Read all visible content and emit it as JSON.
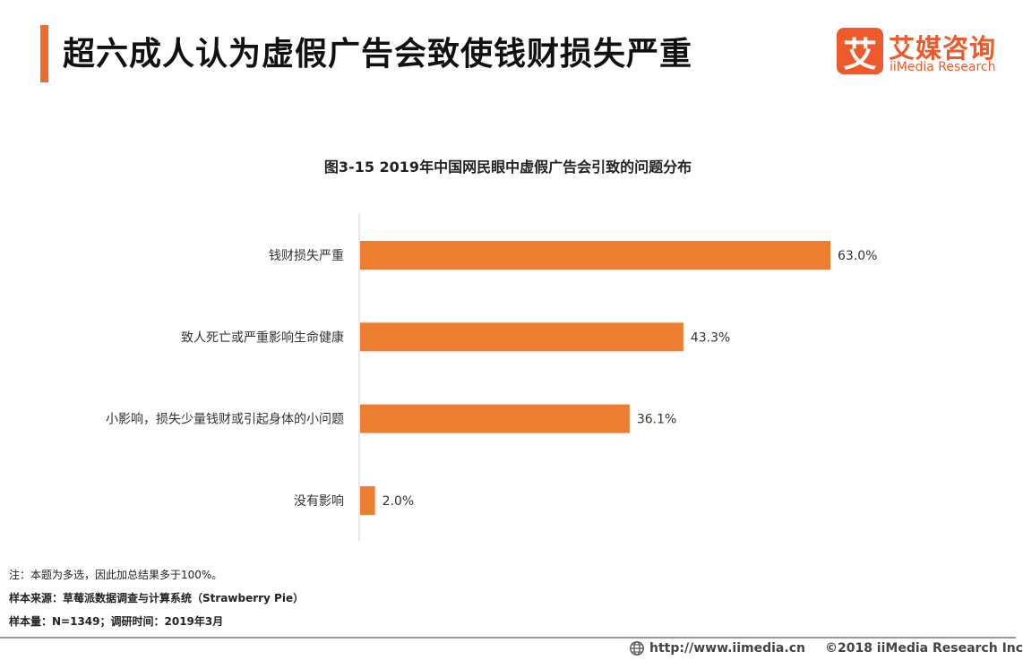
{
  "header": {
    "title": "超六成人认为虚假广告会致使钱财损失严重"
  },
  "logo": {
    "mark": "艾",
    "name_cn": "艾媒咨询",
    "name_en": "iiMedia Research"
  },
  "colors": {
    "accent": "#ee6a2f",
    "bar": "#ed7d31",
    "brand": "#ee5a2c"
  },
  "chart_data": {
    "type": "bar",
    "orientation": "horizontal",
    "title": "图3-15 2019年中国网民眼中虚假广告会引致的问题分布",
    "categories": [
      "钱财损失严重",
      "致人死亡或严重影响生命健康",
      "小影响，损失少量钱财或引起身体的小问题",
      "没有影响"
    ],
    "values": [
      63.0,
      43.3,
      36.1,
      2.0
    ],
    "value_labels": [
      "63.0%",
      "43.3%",
      "36.1%",
      "2.0%"
    ],
    "unit": "%",
    "xlim": [
      0,
      100
    ],
    "grid": false,
    "legend": "none"
  },
  "notes": {
    "note": "注：本题为多选，因此加总结果多于100%。",
    "source": "样本来源：草莓派数据调查与计算系统（Strawberry Pie）",
    "sample": "样本量：N=1349；调研时间：2019年3月"
  },
  "footer": {
    "url": "http://www.iimedia.cn",
    "copyright": "©2018  iiMedia Research  Inc"
  }
}
